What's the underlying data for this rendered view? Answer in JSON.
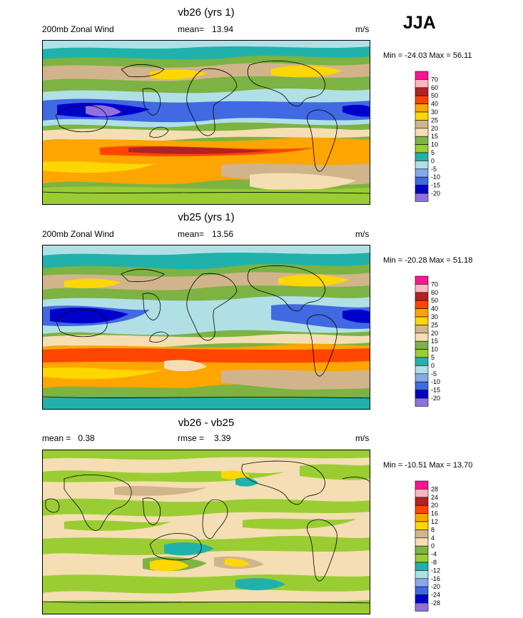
{
  "season_label": "JJA",
  "units": "m/s",
  "chart_data": [
    {
      "type": "heatmap",
      "title": "vb26 (yrs 1)",
      "left_label": "200mb Zonal Wind",
      "mean_label": "mean=",
      "mean_value": "13.94",
      "units_label": "m/s",
      "min_max": "Min = -24.03 Max = 56.11",
      "min": -24.03,
      "max": 56.11,
      "mean": 13.94,
      "levels": [
        -20,
        -15,
        -10,
        -5,
        0,
        5,
        10,
        15,
        20,
        25,
        30,
        40,
        50,
        60,
        70
      ],
      "level_labels": [
        "-20",
        "-15",
        "-10",
        "-5",
        "0",
        "5",
        "10",
        "15",
        "20",
        "25",
        "30",
        "40",
        "50",
        "60",
        "70"
      ],
      "colors": [
        "#9370DB",
        "#0000CD",
        "#4169E1",
        "#87A9EA",
        "#B0E0E6",
        "#20B2AA",
        "#9ACD32",
        "#7CB342",
        "#F5DEB3",
        "#D2B48C",
        "#FFD700",
        "#FFA500",
        "#FF4500",
        "#B22222",
        "#FFB6C1",
        "#FF1493"
      ]
    },
    {
      "type": "heatmap",
      "title": "vb25 (yrs 1)",
      "left_label": "200mb Zonal Wind",
      "mean_label": "mean=",
      "mean_value": "13.56",
      "units_label": "m/s",
      "min_max": "Min = -20.28 Max = 51.18",
      "min": -20.28,
      "max": 51.18,
      "mean": 13.56,
      "levels": [
        -20,
        -15,
        -10,
        -5,
        0,
        5,
        10,
        15,
        20,
        25,
        30,
        40,
        50,
        60,
        70
      ],
      "level_labels": [
        "-20",
        "-15",
        "-10",
        "-5",
        "0",
        "5",
        "10",
        "15",
        "20",
        "25",
        "30",
        "40",
        "50",
        "60",
        "70"
      ],
      "colors": [
        "#9370DB",
        "#0000CD",
        "#4169E1",
        "#87A9EA",
        "#B0E0E6",
        "#20B2AA",
        "#9ACD32",
        "#7CB342",
        "#F5DEB3",
        "#D2B48C",
        "#FFD700",
        "#FFA500",
        "#FF4500",
        "#B22222",
        "#FFB6C1",
        "#FF1493"
      ]
    },
    {
      "type": "heatmap",
      "title": "vb26 - vb25",
      "left_label": "mean =   0.38",
      "mean_label": "rmse =",
      "mean_value": "3.39",
      "units_label": "m/s",
      "min_max": "Min = -10.51 Max = 13.70",
      "min": -10.51,
      "max": 13.7,
      "mean": 0.38,
      "rmse": 3.39,
      "levels": [
        -28,
        -24,
        -20,
        -16,
        -12,
        -8,
        -4,
        0,
        4,
        8,
        12,
        16,
        20,
        24,
        28
      ],
      "level_labels": [
        "-28",
        "-24",
        "-20",
        "-16",
        "-12",
        "-8",
        "-4",
        "0",
        "4",
        "8",
        "12",
        "16",
        "20",
        "24",
        "28"
      ],
      "colors": [
        "#9370DB",
        "#0000CD",
        "#4169E1",
        "#87A9EA",
        "#B0E0E6",
        "#20B2AA",
        "#9ACD32",
        "#7CB342",
        "#F5DEB3",
        "#D2B48C",
        "#FFD700",
        "#FFA500",
        "#FF4500",
        "#B22222",
        "#FFB6C1",
        "#FF1493"
      ]
    }
  ]
}
